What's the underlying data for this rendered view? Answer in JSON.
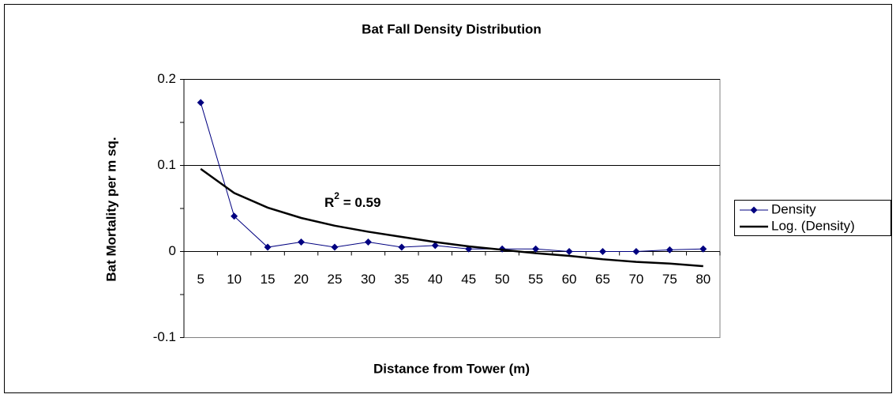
{
  "chart_data": {
    "type": "line",
    "title": "Bat Fall Density Distribution",
    "x_label": "Distance from Tower (m)",
    "y_label": "Bat Mortality per m sq.",
    "categories": [
      "5",
      "10",
      "15",
      "20",
      "25",
      "30",
      "35",
      "40",
      "45",
      "50",
      "55",
      "60",
      "65",
      "70",
      "75",
      "80"
    ],
    "series": [
      {
        "name": "Density",
        "color": "#000080",
        "marker": "diamond",
        "values": [
          0.173,
          0.041,
          0.005,
          0.011,
          0.005,
          0.011,
          0.005,
          0.007,
          0.003,
          0.003,
          0.003,
          0,
          0,
          0,
          0.002,
          0.003
        ]
      },
      {
        "name": "Log. (Density)",
        "color": "#000000",
        "marker": "none",
        "values": [
          0.096,
          0.068,
          0.051,
          0.039,
          0.03,
          0.023,
          0.017,
          0.011,
          0.006,
          0.002,
          -0.002,
          -0.005,
          -0.009,
          -0.012,
          -0.014,
          -0.017
        ]
      }
    ],
    "annotation": {
      "base": "R",
      "sup": "2",
      "rest": " = 0.59"
    },
    "ylim": [
      -0.1,
      0.2
    ],
    "yticks": [
      -0.1,
      0,
      0.1,
      0.2
    ],
    "grid": true,
    "legend": "right"
  }
}
